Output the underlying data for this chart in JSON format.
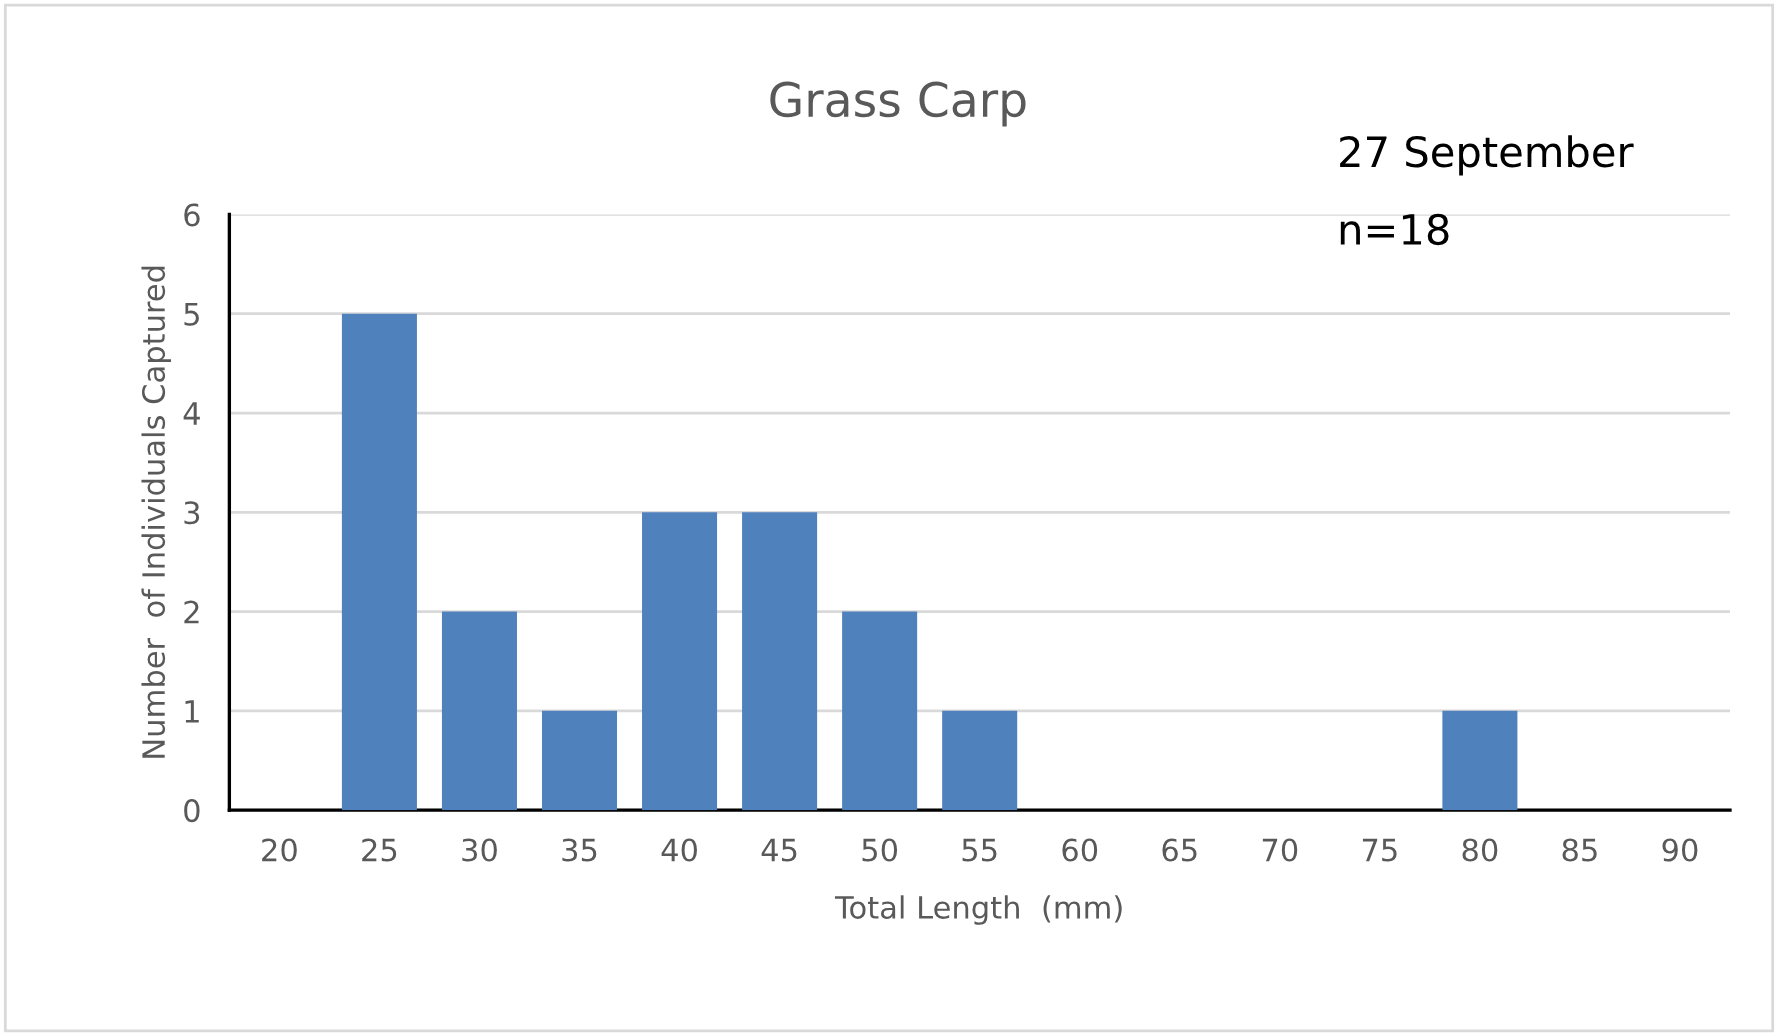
{
  "chart_data": {
    "type": "bar",
    "title": "Grass Carp",
    "xlabel": "Total Length  (mm)",
    "ylabel": "Number  of Individuals Captured",
    "categories": [
      "20",
      "25",
      "30",
      "35",
      "40",
      "45",
      "50",
      "55",
      "60",
      "65",
      "70",
      "75",
      "80",
      "85",
      "90"
    ],
    "values": [
      0,
      5,
      2,
      1,
      3,
      3,
      2,
      1,
      0,
      0,
      0,
      0,
      1,
      0,
      0
    ],
    "color": "#4f81bd",
    "ylim": [
      0,
      6
    ],
    "yticks": [
      0,
      1,
      2,
      3,
      4,
      5,
      6
    ],
    "grid": "y",
    "annotations": [
      "27 September",
      "n=18"
    ]
  }
}
